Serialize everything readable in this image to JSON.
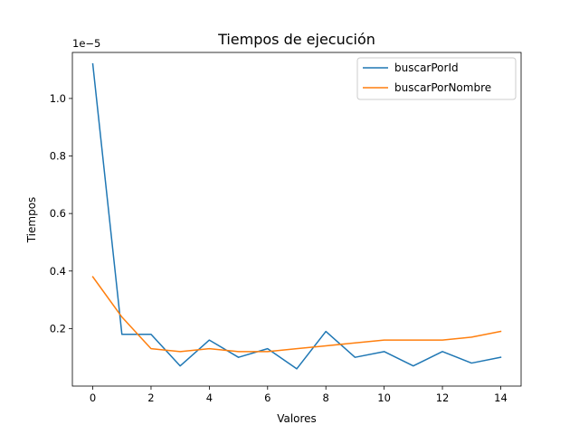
{
  "chart_data": {
    "type": "line",
    "title": "Tiempos de ejecución",
    "xlabel": "Valores",
    "ylabel": "Tiempos",
    "offset_label": "1e−5",
    "x": [
      0,
      1,
      2,
      3,
      4,
      5,
      6,
      7,
      8,
      9,
      10,
      11,
      12,
      13,
      14
    ],
    "xticks": [
      "0",
      "2",
      "4",
      "6",
      "8",
      "10",
      "12",
      "14"
    ],
    "yticks": [
      "0.2",
      "0.4",
      "0.6",
      "0.8",
      "1.0"
    ],
    "xlim": [
      -0.7,
      14.7
    ],
    "ylim": [
      0.0,
      1.16
    ],
    "y_scale_note": "values shown in units of 1e-5",
    "grid": false,
    "legend_position": "top-right",
    "series": [
      {
        "name": "buscarPorId",
        "color": "#1f77b4",
        "values": [
          1.12,
          0.18,
          0.18,
          0.07,
          0.16,
          0.1,
          0.13,
          0.06,
          0.19,
          0.1,
          0.12,
          0.07,
          0.12,
          0.08,
          0.1
        ]
      },
      {
        "name": "buscarPorNombre",
        "color": "#ff7f0e",
        "values": [
          0.38,
          0.24,
          0.13,
          0.12,
          0.13,
          0.12,
          0.12,
          0.13,
          0.14,
          0.15,
          0.16,
          0.16,
          0.16,
          0.17,
          0.19
        ]
      }
    ]
  }
}
